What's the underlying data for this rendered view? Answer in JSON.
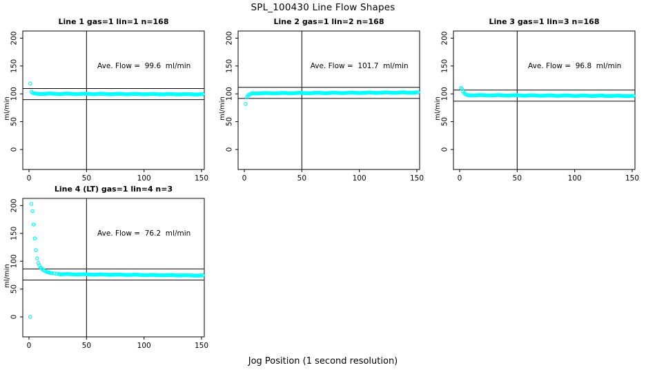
{
  "page": {
    "main_title": "SPL_100430  Line Flow Shapes",
    "x_axis_label": "Jog Position (1 second resolution)",
    "colors": {
      "points": "#00FFFF",
      "axis": "#000000",
      "background": "#FFFFFF"
    }
  },
  "chart_data": [
    {
      "type": "scatter",
      "title": "Line 1 gas=1 lin=1 n=168",
      "annotation": "Ave. Flow =  99.6  ml/min",
      "ave_flow_ml_min": 99.6,
      "n": 168,
      "ylabel": "ml/min",
      "x_ticks": [
        0,
        50,
        100,
        150
      ],
      "y_ticks": [
        0,
        50,
        100,
        150,
        200
      ],
      "xlim": [
        -5.4,
        152.4
      ],
      "ylim": [
        -35.9,
        212.9
      ],
      "vline_x": 50,
      "hlines": [
        109.6,
        89.6
      ],
      "annotation_pos": [
        100,
        150
      ],
      "head_points": [
        [
          1,
          118.5
        ],
        [
          2,
          104
        ],
        [
          3,
          102
        ],
        [
          4,
          101
        ],
        [
          5,
          100.5
        ]
      ],
      "tail": {
        "x_from": 6,
        "x_to": 151,
        "step": 1,
        "y_from": 100.2,
        "y_to": 99.2,
        "jitter": 0.4
      }
    },
    {
      "type": "scatter",
      "title": "Line 2 gas=1 lin=2 n=168",
      "annotation": "Ave. Flow =  101.7  ml/min",
      "ave_flow_ml_min": 101.7,
      "n": 168,
      "ylabel": "ml/min",
      "x_ticks": [
        0,
        50,
        100,
        150
      ],
      "y_ticks": [
        0,
        50,
        100,
        150,
        200
      ],
      "xlim": [
        -5.4,
        152.4
      ],
      "ylim": [
        -35.9,
        212.9
      ],
      "vline_x": 50,
      "hlines": [
        111.7,
        91.7
      ],
      "annotation_pos": [
        100,
        150
      ],
      "head_points": [
        [
          1,
          82
        ],
        [
          2,
          93.5
        ],
        [
          3,
          96.5
        ],
        [
          4,
          98.3
        ],
        [
          5,
          99.5
        ],
        [
          6,
          100.4
        ]
      ],
      "tail": {
        "x_from": 7,
        "x_to": 151,
        "step": 1,
        "y_from": 101.0,
        "y_to": 102.4,
        "jitter": 0.4
      }
    },
    {
      "type": "scatter",
      "title": "Line 3 gas=1 lin=3 n=168",
      "annotation": "Ave. Flow =  96.8  ml/min",
      "ave_flow_ml_min": 96.8,
      "n": 168,
      "ylabel": "ml/min",
      "x_ticks": [
        0,
        50,
        100,
        150
      ],
      "y_ticks": [
        0,
        50,
        100,
        150,
        200
      ],
      "xlim": [
        -5.4,
        152.4
      ],
      "ylim": [
        -35.9,
        212.9
      ],
      "vline_x": 50,
      "hlines": [
        106.8,
        86.8
      ],
      "annotation_pos": [
        100,
        150
      ],
      "head_points": [
        [
          1,
          110.5
        ],
        [
          2,
          108.5
        ],
        [
          3,
          104
        ],
        [
          4,
          101
        ],
        [
          5,
          99.2
        ],
        [
          6,
          98.2
        ]
      ],
      "tail": {
        "x_from": 7,
        "x_to": 151,
        "step": 1,
        "y_from": 97.6,
        "y_to": 96.2,
        "jitter": 0.4
      }
    },
    {
      "type": "scatter",
      "title": "Line 4 (LT) gas=1 lin=4 n=3",
      "annotation": "Ave. Flow =  76.2  ml/min",
      "ave_flow_ml_min": 76.2,
      "n": 3,
      "ylabel": "ml/min",
      "x_ticks": [
        0,
        50,
        100,
        150
      ],
      "y_ticks": [
        0,
        50,
        100,
        150,
        200
      ],
      "xlim": [
        -5.4,
        152.4
      ],
      "ylim": [
        -35.9,
        212.9
      ],
      "vline_x": 50,
      "hlines": [
        86.2,
        66.2
      ],
      "annotation_pos": [
        100,
        150
      ],
      "head_points": [
        [
          1,
          0
        ],
        [
          2,
          203
        ],
        [
          3,
          190
        ],
        [
          4,
          166
        ],
        [
          5,
          141
        ],
        [
          6,
          120
        ],
        [
          7,
          105
        ],
        [
          8,
          97
        ],
        [
          9,
          92.5
        ],
        [
          10,
          89
        ],
        [
          11,
          86.5
        ],
        [
          12,
          84.8
        ],
        [
          13,
          83.4
        ],
        [
          14,
          82.2
        ],
        [
          15,
          81.3
        ],
        [
          16,
          80.5
        ],
        [
          17,
          79.9
        ],
        [
          18,
          79.4
        ],
        [
          19,
          78.9
        ],
        [
          20,
          78.5
        ],
        [
          22,
          77.9
        ],
        [
          24,
          77.4
        ],
        [
          26,
          77.0
        ]
      ],
      "tail": {
        "x_from": 27,
        "x_to": 151,
        "step": 1,
        "y_from": 76.8,
        "y_to": 74.3,
        "jitter": 0.35
      }
    }
  ]
}
